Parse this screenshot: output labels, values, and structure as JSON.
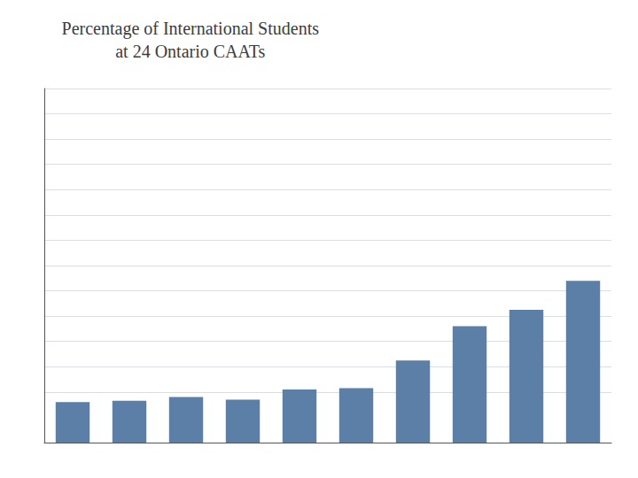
{
  "chart_data": {
    "type": "bar",
    "title": "Percentage of International Students\nat 24 Ontario CAATs",
    "categories": [
      null,
      null,
      null,
      null,
      null,
      null,
      null,
      null,
      null,
      null
    ],
    "values": [
      3.2,
      3.3,
      3.6,
      3.4,
      4.2,
      4.3,
      6.5,
      9.2,
      10.5,
      12.8
    ],
    "color": "#5B7FA6",
    "ylim": [
      0,
      28
    ],
    "yticks": [
      4,
      6,
      8,
      10,
      12,
      14,
      16,
      18,
      20,
      22,
      24,
      26,
      28
    ],
    "grid": true,
    "tick_labels": false
  }
}
